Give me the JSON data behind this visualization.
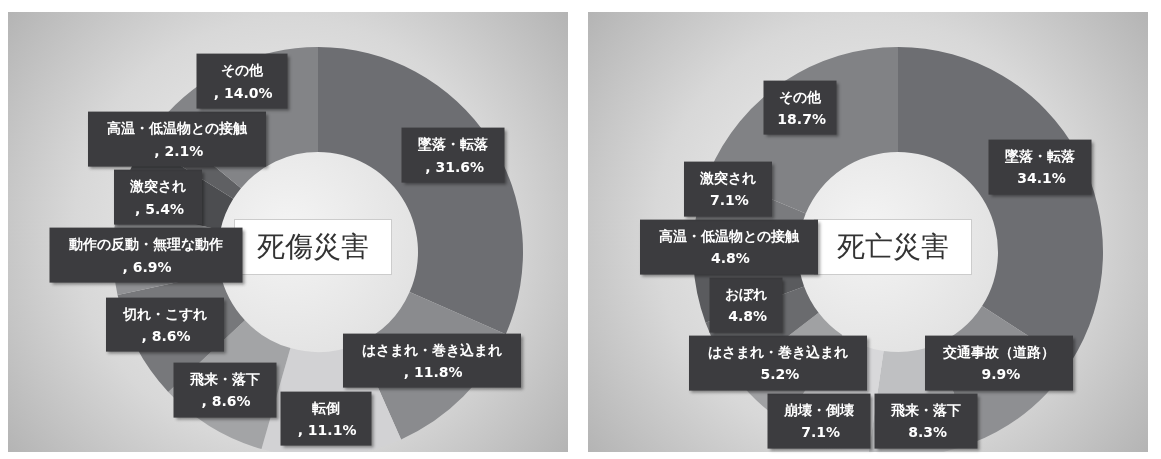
{
  "chart_data": [
    {
      "type": "donut",
      "title": "死傷災害",
      "categories": [
        "墜落・転落",
        "はさまれ・巻き込まれ",
        "転倒",
        "飛来・落下",
        "切れ・こすれ",
        "動作の反動・無理な動作",
        "激突され",
        "高温・低温物との接触",
        "その他"
      ],
      "values": [
        31.6,
        11.8,
        11.1,
        8.6,
        8.6,
        6.9,
        5.4,
        2.1,
        14.0
      ],
      "colors": [
        "#6d6e72",
        "#8a8b8e",
        "#d2d2d4",
        "#a3a4a6",
        "#77787b",
        "#909194",
        "#4c4d50",
        "#5f6063",
        "#838487"
      ],
      "value_labels": [
        ", 31.6%",
        ", 11.8%",
        ", 11.1%",
        ", 8.6%",
        ", 8.6%",
        ", 6.9%",
        ", 5.4%",
        ", 2.1%",
        ", 14.0%"
      ]
    },
    {
      "type": "donut",
      "title": "死亡災害",
      "categories": [
        "墜落・転落",
        "交通事故（道路）",
        "飛来・落下",
        "崩壊・倒壊",
        "はさまれ・巻き込まれ",
        "おぼれ",
        "高温・低温物との接触",
        "激突され",
        "その他"
      ],
      "values": [
        34.1,
        9.9,
        8.3,
        7.1,
        5.2,
        4.8,
        4.8,
        7.1,
        18.7
      ],
      "colors": [
        "#6d6e72",
        "#8e8f92",
        "#bfc0c2",
        "#d8d8da",
        "#a0a1a3",
        "#6a6b6e",
        "#5a5b5e",
        "#7a7b7e",
        "#818285"
      ],
      "value_labels": [
        "34.1%",
        "9.9%",
        "8.3%",
        "7.1%",
        "5.2%",
        "4.8%",
        "4.8%",
        "7.1%",
        "18.7%"
      ]
    }
  ]
}
